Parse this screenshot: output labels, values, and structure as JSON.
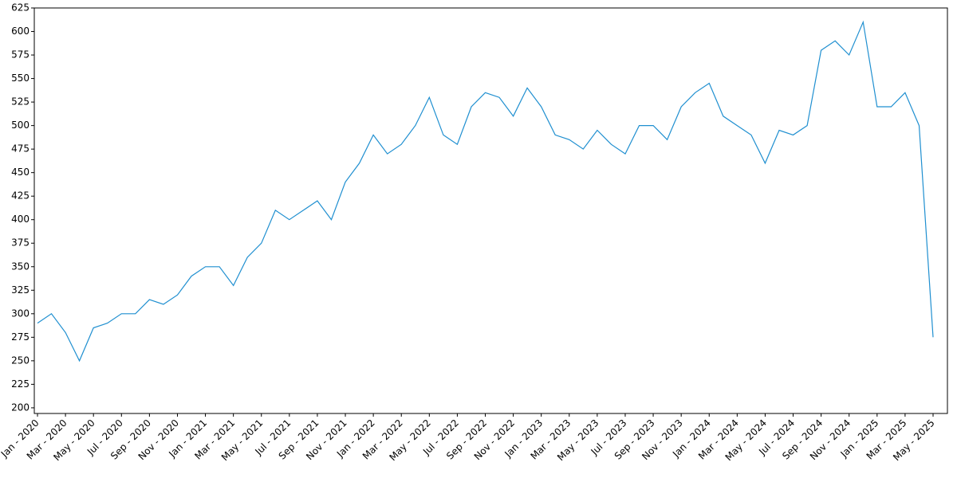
{
  "chart_data": {
    "type": "line",
    "color": "#1f8fd0",
    "x": [
      "2020-01",
      "2020-02",
      "2020-03",
      "2020-04",
      "2020-05",
      "2020-06",
      "2020-07",
      "2020-08",
      "2020-09",
      "2020-10",
      "2020-11",
      "2020-12",
      "2021-01",
      "2021-02",
      "2021-03",
      "2021-04",
      "2021-05",
      "2021-06",
      "2021-07",
      "2021-08",
      "2021-09",
      "2021-10",
      "2021-11",
      "2021-12",
      "2022-01",
      "2022-02",
      "2022-03",
      "2022-04",
      "2022-05",
      "2022-06",
      "2022-07",
      "2022-08",
      "2022-09",
      "2022-10",
      "2022-11",
      "2022-12",
      "2023-01",
      "2023-02",
      "2023-03",
      "2023-04",
      "2023-05",
      "2023-06",
      "2023-07",
      "2023-08",
      "2023-09",
      "2023-10",
      "2023-11",
      "2023-12",
      "2024-01",
      "2024-02",
      "2024-03",
      "2024-04",
      "2024-05",
      "2024-06",
      "2024-07",
      "2024-08",
      "2024-09",
      "2024-10",
      "2024-11",
      "2024-12",
      "2025-01",
      "2025-02",
      "2025-03",
      "2025-04",
      "2025-05"
    ],
    "values": [
      290,
      300,
      280,
      250,
      285,
      290,
      300,
      300,
      315,
      310,
      320,
      340,
      350,
      350,
      330,
      360,
      375,
      410,
      400,
      410,
      420,
      400,
      440,
      460,
      490,
      470,
      480,
      500,
      530,
      490,
      480,
      520,
      535,
      530,
      510,
      540,
      520,
      490,
      485,
      475,
      495,
      480,
      470,
      500,
      500,
      485,
      520,
      535,
      545,
      510,
      500,
      490,
      460,
      495,
      490,
      500,
      580,
      590,
      575,
      610,
      520,
      520,
      535,
      500,
      275
    ],
    "xlim": [
      "2020-01",
      "2025-05"
    ],
    "xticks": [
      {
        "value": "2020-01",
        "label": "Jan - 2020"
      },
      {
        "value": "2020-03",
        "label": "Mar - 2020"
      },
      {
        "value": "2020-05",
        "label": "May - 2020"
      },
      {
        "value": "2020-07",
        "label": "Jul - 2020"
      },
      {
        "value": "2020-09",
        "label": "Sep - 2020"
      },
      {
        "value": "2020-11",
        "label": "Nov - 2020"
      },
      {
        "value": "2021-01",
        "label": "Jan - 2021"
      },
      {
        "value": "2021-03",
        "label": "Mar - 2021"
      },
      {
        "value": "2021-05",
        "label": "May - 2021"
      },
      {
        "value": "2021-07",
        "label": "Jul - 2021"
      },
      {
        "value": "2021-09",
        "label": "Sep - 2021"
      },
      {
        "value": "2021-11",
        "label": "Nov - 2021"
      },
      {
        "value": "2022-01",
        "label": "Jan - 2022"
      },
      {
        "value": "2022-03",
        "label": "Mar - 2022"
      },
      {
        "value": "2022-05",
        "label": "May - 2022"
      },
      {
        "value": "2022-07",
        "label": "Jul - 2022"
      },
      {
        "value": "2022-09",
        "label": "Sep - 2022"
      },
      {
        "value": "2022-11",
        "label": "Nov - 2022"
      },
      {
        "value": "2023-01",
        "label": "Jan - 2023"
      },
      {
        "value": "2023-03",
        "label": "Mar - 2023"
      },
      {
        "value": "2023-05",
        "label": "May - 2023"
      },
      {
        "value": "2023-07",
        "label": "Jul - 2023"
      },
      {
        "value": "2023-09",
        "label": "Sep - 2023"
      },
      {
        "value": "2023-11",
        "label": "Nov - 2023"
      },
      {
        "value": "2024-01",
        "label": "Jan - 2024"
      },
      {
        "value": "2024-03",
        "label": "Mar - 2024"
      },
      {
        "value": "2024-05",
        "label": "May - 2024"
      },
      {
        "value": "2024-07",
        "label": "Jul - 2024"
      },
      {
        "value": "2024-09",
        "label": "Sep - 2024"
      },
      {
        "value": "2024-11",
        "label": "Nov - 2024"
      },
      {
        "value": "2025-01",
        "label": "Jan - 2025"
      },
      {
        "value": "2025-03",
        "label": "Mar - 2025"
      },
      {
        "value": "2025-05",
        "label": "May - 2025"
      }
    ],
    "ylim": [
      194,
      625
    ],
    "yticks": [
      200,
      225,
      250,
      275,
      300,
      325,
      350,
      375,
      400,
      425,
      450,
      475,
      500,
      525,
      550,
      575,
      600,
      625
    ]
  }
}
